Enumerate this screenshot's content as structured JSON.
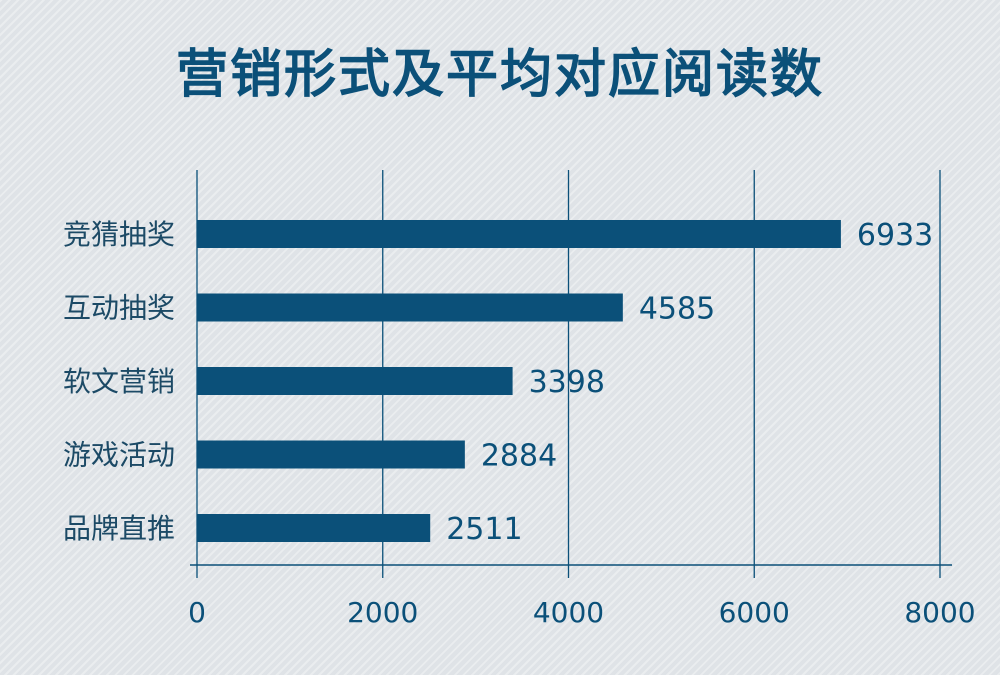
{
  "colors": {
    "bar": "#0b5079",
    "text": "#0b5079",
    "axis": "#0b5079",
    "category_text": "#1c4a66",
    "background": "#dfe3e7"
  },
  "chart_data": {
    "type": "bar",
    "orientation": "horizontal",
    "title": "营销形式及平均对应阅读数",
    "categories": [
      "竞猜抽奖",
      "互动抽奖",
      "软文营销",
      "游戏活动",
      "品牌直推"
    ],
    "values": [
      6933,
      4585,
      3398,
      2884,
      2511
    ],
    "value_labels": [
      "6933",
      "4585",
      "3398",
      "2884",
      "2511"
    ],
    "xlim": [
      0,
      8000
    ],
    "x_ticks": [
      0,
      2000,
      4000,
      6000,
      8000
    ],
    "x_tick_labels": [
      "0",
      "2000",
      "4000",
      "6000",
      "8000"
    ],
    "grid": true,
    "legend": "none"
  }
}
